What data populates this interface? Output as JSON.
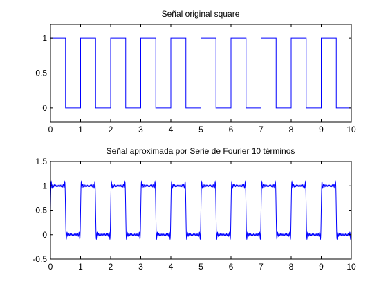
{
  "colors": {
    "line": "#0000ff",
    "axis": "#000000",
    "background": "#ffffff"
  },
  "chart_data": [
    {
      "type": "line",
      "title": "Señal original square",
      "xlabel": "",
      "ylabel": "",
      "xlim": [
        0,
        10
      ],
      "ylim": [
        -0.2,
        1.2
      ],
      "x_ticks": [
        "0",
        "1",
        "2",
        "3",
        "4",
        "5",
        "6",
        "7",
        "8",
        "9",
        "10"
      ],
      "y_ticks": [
        "0",
        "0.5",
        "1"
      ],
      "grid": false,
      "series": [
        {
          "signal": "square",
          "period": 1,
          "duty_cycle": 0.5,
          "high": 1,
          "low": 0,
          "x_range": [
            0,
            10
          ]
        }
      ]
    },
    {
      "type": "line",
      "title": "Señal aproximada por Serie de Fourier 10 términos",
      "xlabel": "",
      "ylabel": "",
      "xlim": [
        0,
        10
      ],
      "ylim": [
        -0.5,
        1.5
      ],
      "x_ticks": [
        "0",
        "1",
        "2",
        "3",
        "4",
        "5",
        "6",
        "7",
        "8",
        "9",
        "10"
      ],
      "y_ticks": [
        "-0.5",
        "0",
        "0.5",
        "1",
        "1.5"
      ],
      "grid": false,
      "series": [
        {
          "signal": "fourier_square",
          "period": 1,
          "terms": 10,
          "high": 1,
          "low": 0,
          "x_range": [
            0,
            10
          ]
        }
      ]
    }
  ]
}
